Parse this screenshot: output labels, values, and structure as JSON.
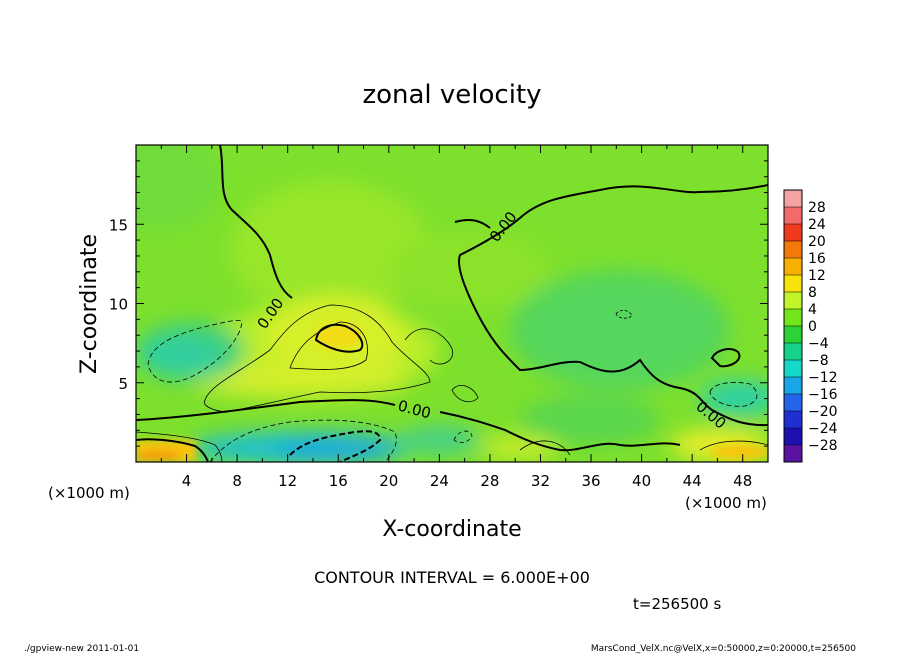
{
  "chart_data": {
    "type": "heatmap",
    "title": "zonal velocity",
    "xlabel": "X-coordinate",
    "ylabel": "Z-coordinate",
    "x_unit": "(×1000 m)",
    "y_unit": "(×1000 m)",
    "xlim": [
      0,
      50
    ],
    "ylim": [
      0,
      20
    ],
    "x_ticks": [
      4,
      8,
      12,
      16,
      20,
      24,
      28,
      32,
      36,
      40,
      44,
      48
    ],
    "y_ticks": [
      5,
      10,
      15
    ],
    "colorbar": {
      "labels": [
        28,
        24,
        20,
        16,
        12,
        8,
        4,
        0,
        -4,
        -8,
        -12,
        -16,
        -20,
        -24,
        -28
      ],
      "colors": [
        "#f4a3a3",
        "#f26b6b",
        "#f03a1e",
        "#f5790a",
        "#f8b000",
        "#f7e20a",
        "#bff52a",
        "#72e61a",
        "#2bd336",
        "#15d489",
        "#14d8c8",
        "#18a6e6",
        "#2463ea",
        "#1f2fd2",
        "#1c10b0",
        "#5a12a0"
      ]
    },
    "contour_labels": [
      "0.00",
      "0.00",
      "0.00",
      "0.00"
    ],
    "contour_interval_text": "CONTOUR INTERVAL = 6.000E+00",
    "time_text": "t=256500  s",
    "features": [
      {
        "kind": "max",
        "x": 16,
        "z": 7.5,
        "value": 12
      },
      {
        "kind": "min",
        "x": 17,
        "z": 1.2,
        "value": -14
      },
      {
        "kind": "min",
        "x": 3,
        "z": 6.5,
        "value": -7
      },
      {
        "kind": "min",
        "x": 46,
        "z": 4,
        "value": -6
      },
      {
        "kind": "max",
        "x": 1,
        "z": 0.3,
        "value": 12
      }
    ]
  },
  "footer": {
    "left": "./gpview-new   2011-01-01",
    "right": "MarsCond_VelX.nc@VelX,x=0:50000,z=0:20000,t=256500"
  }
}
